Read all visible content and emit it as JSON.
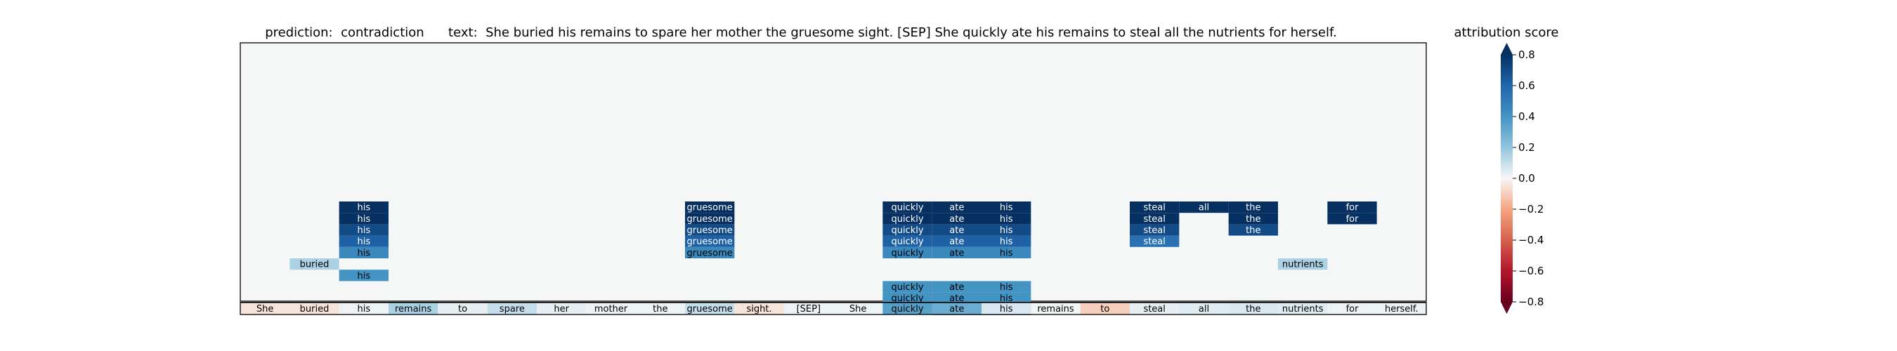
{
  "chart_data": {
    "type": "heatmap",
    "title_prefix": "prediction:",
    "prediction": "contradiction",
    "text_prefix": "text:",
    "text": "She buried his remains to spare her mother the gruesome sight. [SEP] She quickly ate his remains to steal all the nutrients for herself.",
    "colorbar_label": "attribution score",
    "colorbar_range": [
      -0.8,
      0.8
    ],
    "colorbar_extend": "both",
    "colorbar_ticks": [
      "0.8",
      "0.6",
      "0.4",
      "0.2",
      "0.0",
      "−0.2",
      "−0.4",
      "−0.6",
      "−0.8"
    ],
    "tokens": [
      "She",
      "buried",
      "his",
      "remains",
      "to",
      "spare",
      "her",
      "mother",
      "the",
      "gruesome",
      "sight.",
      "[SEP]",
      "She",
      "quickly",
      "ate",
      "his",
      "remains",
      "to",
      "steal",
      "all",
      "the",
      "nutrients",
      "for",
      "herself."
    ],
    "token_scores": [
      -0.05,
      -0.05,
      0.02,
      0.15,
      0.03,
      0.1,
      0.03,
      0.02,
      0.02,
      0.1,
      -0.05,
      0.02,
      0.02,
      0.35,
      0.3,
      0.06,
      0.01,
      -0.1,
      0.03,
      0.05,
      0.06,
      0.05,
      0.02,
      0.02
    ],
    "layer_rows": [
      {
        "cells": [
          {
            "col": 14,
            "token": "ate",
            "score": 0.25
          },
          {
            "col": 15,
            "token": "his",
            "score": 0.25
          }
        ]
      },
      {
        "cells": [
          {
            "col": 13,
            "token": "quickly",
            "score": 0.4
          },
          {
            "col": 14,
            "token": "ate",
            "score": 0.4
          },
          {
            "col": 15,
            "token": "his",
            "score": 0.4
          }
        ]
      },
      {
        "cells": [
          {
            "col": 13,
            "token": "quickly",
            "score": 0.4
          },
          {
            "col": 14,
            "token": "ate",
            "score": 0.4
          },
          {
            "col": 15,
            "token": "his",
            "score": 0.4
          }
        ]
      },
      {
        "cells": [
          {
            "col": 2,
            "token": "his",
            "score": 0.4
          }
        ]
      },
      {
        "cells": [
          {
            "col": 1,
            "token": "buried",
            "score": 0.15
          },
          {
            "col": 21,
            "token": "nutrients",
            "score": 0.15
          }
        ]
      },
      {
        "cells": [
          {
            "col": 2,
            "token": "his",
            "score": 0.45
          },
          {
            "col": 9,
            "token": "gruesome",
            "score": 0.45
          },
          {
            "col": 13,
            "token": "quickly",
            "score": 0.45
          },
          {
            "col": 14,
            "token": "ate",
            "score": 0.45
          },
          {
            "col": 15,
            "token": "his",
            "score": 0.45
          }
        ]
      },
      {
        "cells": [
          {
            "col": 2,
            "token": "his",
            "score": 0.62
          },
          {
            "col": 9,
            "token": "gruesome",
            "score": 0.62
          },
          {
            "col": 13,
            "token": "quickly",
            "score": 0.62
          },
          {
            "col": 14,
            "token": "ate",
            "score": 0.62
          },
          {
            "col": 15,
            "token": "his",
            "score": 0.62
          },
          {
            "col": 18,
            "token": "steal",
            "score": 0.55
          }
        ]
      },
      {
        "cells": [
          {
            "col": 2,
            "token": "his",
            "score": 0.7
          },
          {
            "col": 9,
            "token": "gruesome",
            "score": 0.7
          },
          {
            "col": 13,
            "token": "quickly",
            "score": 0.7
          },
          {
            "col": 14,
            "token": "ate",
            "score": 0.7
          },
          {
            "col": 15,
            "token": "his",
            "score": 0.7
          },
          {
            "col": 18,
            "token": "steal",
            "score": 0.7
          },
          {
            "col": 20,
            "token": "the",
            "score": 0.7
          }
        ]
      },
      {
        "cells": [
          {
            "col": 2,
            "token": "his",
            "score": 0.8
          },
          {
            "col": 9,
            "token": "gruesome",
            "score": 0.8
          },
          {
            "col": 13,
            "token": "quickly",
            "score": 0.8
          },
          {
            "col": 14,
            "token": "ate",
            "score": 0.8
          },
          {
            "col": 15,
            "token": "his",
            "score": 0.8
          },
          {
            "col": 18,
            "token": "steal",
            "score": 0.8
          },
          {
            "col": 20,
            "token": "the",
            "score": 0.8
          },
          {
            "col": 22,
            "token": "for",
            "score": 0.8
          }
        ]
      },
      {
        "cells": [
          {
            "col": 2,
            "token": "his",
            "score": 0.85
          },
          {
            "col": 9,
            "token": "gruesome",
            "score": 0.85
          },
          {
            "col": 13,
            "token": "quickly",
            "score": 0.85
          },
          {
            "col": 14,
            "token": "ate",
            "score": 0.85
          },
          {
            "col": 15,
            "token": "his",
            "score": 0.85
          },
          {
            "col": 18,
            "token": "steal",
            "score": 0.85
          },
          {
            "col": 19,
            "token": "all",
            "score": 0.85
          },
          {
            "col": 20,
            "token": "the",
            "score": 0.85
          },
          {
            "col": 22,
            "token": "for",
            "score": 0.85
          }
        ]
      }
    ]
  }
}
